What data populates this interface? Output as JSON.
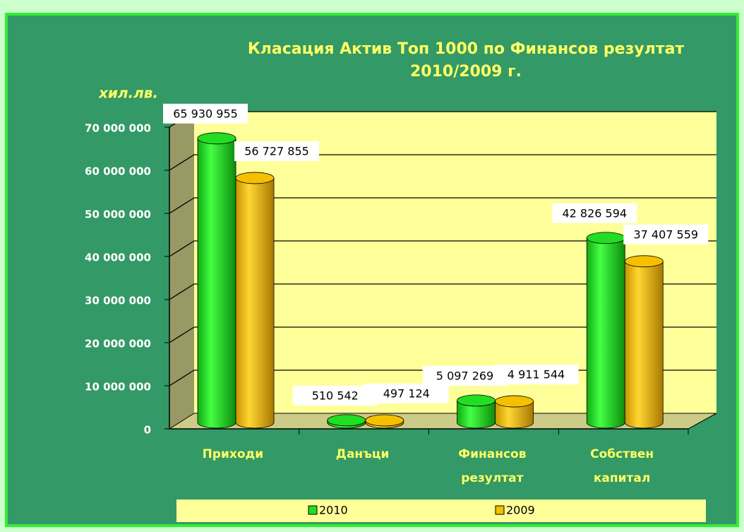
{
  "chart_data": {
    "type": "bar",
    "title": "Класация Актив Топ 1000  по Финансов резултат 2010/2009 г.",
    "y_axis_label": "хил.лв.",
    "categories": [
      "Приходи",
      "Данъци",
      "Финансов резултат",
      "Собствен капитал"
    ],
    "series": [
      {
        "name": "2010",
        "color": "#22dd22",
        "values": [
          65930955,
          510542,
          5097269,
          42826594
        ],
        "value_labels": [
          "65 930 955",
          "510 542",
          "5 097 269",
          "42 826 594"
        ]
      },
      {
        "name": "2009",
        "color": "#f5c000",
        "values": [
          56727855,
          497124,
          4911544,
          37407559
        ],
        "value_labels": [
          "56 727 855",
          "497 124",
          "4 911 544",
          "37 407 559"
        ]
      }
    ],
    "ylim": [
      0,
      70000000
    ],
    "yticks": [
      0,
      {
        "value": 10000000,
        "label": "10 000 000"
      },
      {
        "value": 20000000,
        "label": "20 000 000"
      },
      {
        "value": 30000000,
        "label": "30 000 000"
      },
      {
        "value": 40000000,
        "label": "40 000 000"
      },
      {
        "value": 50000000,
        "label": "50 000 000"
      },
      {
        "value": 60000000,
        "label": "60 000 000"
      },
      {
        "value": 70000000,
        "label": "70 000 000"
      }
    ],
    "grid": true,
    "legend": "bottom"
  }
}
